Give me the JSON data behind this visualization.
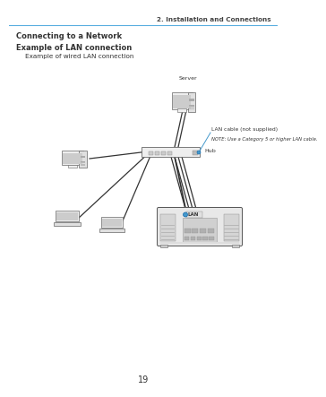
{
  "page_number": "19",
  "header_line_color": "#5aafe0",
  "header_text": "2. Installation and Connections",
  "header_text_color": "#444444",
  "section_title": "Connecting to a Network",
  "subsection_title": "Example of LAN connection",
  "subsection_subtitle": "Example of wired LAN connection",
  "label_server": "Server",
  "label_hub": "Hub",
  "label_lan_cable": "LAN cable (not supplied)",
  "label_note": "NOTE: Use a Category 5 or higher LAN cable.",
  "label_lan": "LAN",
  "bg_color": "#ffffff",
  "text_color": "#333333",
  "diagram_line_color": "#333333",
  "blue_connector_color": "#4499cc",
  "device_fill": "#eeeeee",
  "device_fill2": "#e0e0e0",
  "device_stroke": "#666666",
  "screen_fill": "#cccccc",
  "dark_fill": "#aaaaaa"
}
